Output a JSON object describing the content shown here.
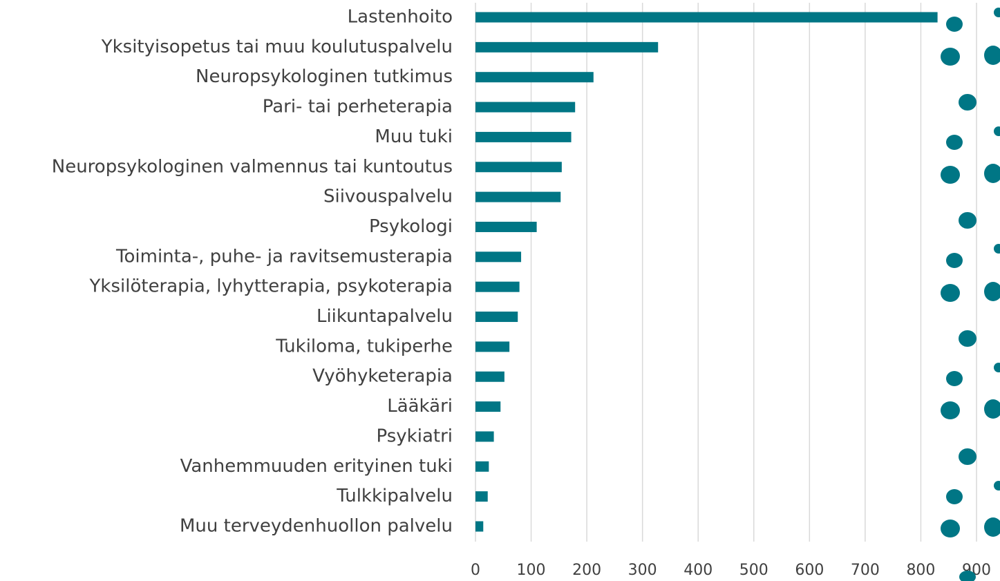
{
  "chart_data": {
    "type": "bar",
    "orientation": "horizontal",
    "categories": [
      "Lastenhoito",
      "Yksityisopetus tai muu koulutuspalvelu",
      "Neuropsykologinen tutkimus",
      "Pari- tai perheterapia",
      "Muu tuki",
      "Neuropsykologinen valmennus tai kuntoutus",
      "Siivouspalvelu",
      "Psykologi",
      "Toiminta-, puhe- ja ravitsemusterapia",
      "Yksilöterapia, lyhytterapia, psykoterapia",
      "Liikuntapalvelu",
      "Tukiloma, tukiperhe",
      "Vyöhyketerapia",
      "Lääkäri",
      "Psykiatri",
      "Vanhemmuuden erityinen tuki",
      "Tulkkipalvelu",
      "Muu terveydenhuollon palvelu"
    ],
    "values": [
      830,
      328,
      212,
      179,
      172,
      155,
      153,
      110,
      82,
      79,
      76,
      61,
      52,
      45,
      33,
      24,
      22,
      14
    ],
    "color": "#007685",
    "xlim": [
      0,
      900
    ],
    "xticks": [
      0,
      100,
      200,
      300,
      400,
      500,
      600,
      700,
      800,
      900
    ],
    "grid": true
  }
}
